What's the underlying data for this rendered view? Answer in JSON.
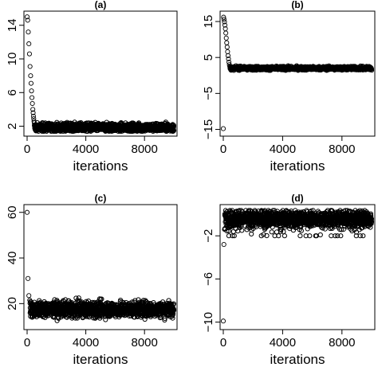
{
  "chart_data": [
    {
      "type": "scatter",
      "title": "(a)",
      "xlabel": "iterations",
      "ylabel": "",
      "xlim": [
        0,
        10000
      ],
      "ylim": [
        1.2,
        15.3
      ],
      "xticks": [
        0,
        4000,
        8000
      ],
      "yticks": [
        2,
        6,
        10,
        14
      ],
      "burn_in": [
        [
          0,
          15.0
        ],
        [
          40,
          14.6
        ],
        [
          80,
          13.2
        ],
        [
          120,
          11.8
        ],
        [
          160,
          10.6
        ],
        [
          200,
          9.1
        ],
        [
          240,
          8.0
        ],
        [
          270,
          7.1
        ],
        [
          300,
          6.2
        ],
        [
          330,
          5.4
        ],
        [
          360,
          4.7
        ],
        [
          390,
          4.0
        ],
        [
          410,
          3.6
        ],
        [
          430,
          3.2
        ],
        [
          450,
          2.9
        ],
        [
          470,
          2.6
        ],
        [
          490,
          2.4
        ]
      ],
      "trace": {
        "x_start": 500,
        "x_end": 10000,
        "center": 1.85,
        "spread": 0.35,
        "min": 1.4,
        "max": 2.6
      }
    },
    {
      "type": "scatter",
      "title": "(b)",
      "xlabel": "iterations",
      "ylabel": "",
      "xlim": [
        0,
        10000
      ],
      "ylim": [
        -16,
        17
      ],
      "xticks": [
        0,
        4000,
        8000
      ],
      "yticks": [
        -15,
        -5,
        5,
        15
      ],
      "burn_in": [
        [
          0,
          -14.8
        ],
        [
          20,
          16.2
        ],
        [
          50,
          15.6
        ],
        [
          80,
          14.9
        ],
        [
          110,
          14.0
        ],
        [
          140,
          13.0
        ],
        [
          170,
          11.8
        ],
        [
          200,
          10.4
        ],
        [
          230,
          9.1
        ],
        [
          260,
          7.9
        ],
        [
          290,
          6.6
        ],
        [
          320,
          5.5
        ],
        [
          350,
          4.6
        ],
        [
          380,
          3.7
        ],
        [
          410,
          3.0
        ],
        [
          440,
          2.5
        ]
      ],
      "trace": {
        "x_start": 450,
        "x_end": 10000,
        "center": 2.0,
        "spread": 0.35,
        "min": 1.4,
        "max": 2.7
      }
    },
    {
      "type": "scatter",
      "title": "(c)",
      "xlabel": "iterations",
      "ylabel": "",
      "xlim": [
        0,
        10000
      ],
      "ylim": [
        10,
        62
      ],
      "xticks": [
        0,
        4000,
        8000
      ],
      "yticks": [
        20,
        40,
        60
      ],
      "burn_in": [
        [
          0,
          60.0
        ],
        [
          60,
          31.0
        ],
        [
          120,
          23.5
        ],
        [
          180,
          21.5
        ]
      ],
      "trace": {
        "x_start": 200,
        "x_end": 10000,
        "center": 17.5,
        "spread": 2.4,
        "min": 12.5,
        "max": 22.5
      }
    },
    {
      "type": "scatter",
      "title": "(d)",
      "xlabel": "iterations",
      "ylabel": "",
      "xlim": [
        0,
        10000
      ],
      "ylim": [
        -10.4,
        0.6
      ],
      "xticks": [
        0,
        4000,
        8000
      ],
      "yticks": [
        -10,
        -6,
        -2
      ],
      "burn_in": [
        [
          0,
          -9.9
        ],
        [
          40,
          -2.8
        ],
        [
          80,
          -1.4
        ]
      ],
      "trace": {
        "x_start": 100,
        "x_end": 10000,
        "center": -0.4,
        "spread": 0.55,
        "min": -2.0,
        "max": 0.35
      }
    }
  ]
}
